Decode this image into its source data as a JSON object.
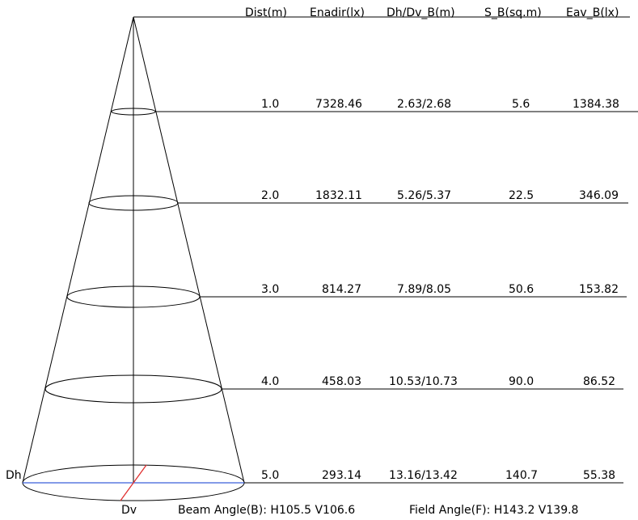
{
  "headers": [
    "Dist(m)",
    "Enadir(lx)",
    "Dh/Dv_B(m)",
    "S_B(sq.m)",
    "Eav_B(lx)"
  ],
  "rows": [
    {
      "dist": "1.0",
      "enadir": "7328.46",
      "dhdv": "2.63/2.68",
      "sb": "5.6",
      "eav": "1384.38"
    },
    {
      "dist": "2.0",
      "enadir": "1832.11",
      "dhdv": "5.26/5.37",
      "sb": "22.5",
      "eav": "346.09"
    },
    {
      "dist": "3.0",
      "enadir": "814.27",
      "dhdv": "7.89/8.05",
      "sb": "50.6",
      "eav": "153.82"
    },
    {
      "dist": "4.0",
      "enadir": "458.03",
      "dhdv": "10.53/10.73",
      "sb": "90.0",
      "eav": "86.52"
    },
    {
      "dist": "5.0",
      "enadir": "293.14",
      "dhdv": "13.16/13.42",
      "sb": "140.7",
      "eav": "55.38"
    }
  ],
  "labels": {
    "dh": "Dh",
    "dv": "Dv",
    "beam_angle": "Beam Angle(B): H105.5 V106.6",
    "field_angle": "Field Angle(F): H143.2 V139.8"
  },
  "colors": {
    "line": "#000000",
    "dh_line": "#3a5fd9",
    "dv_line": "#e03030"
  }
}
